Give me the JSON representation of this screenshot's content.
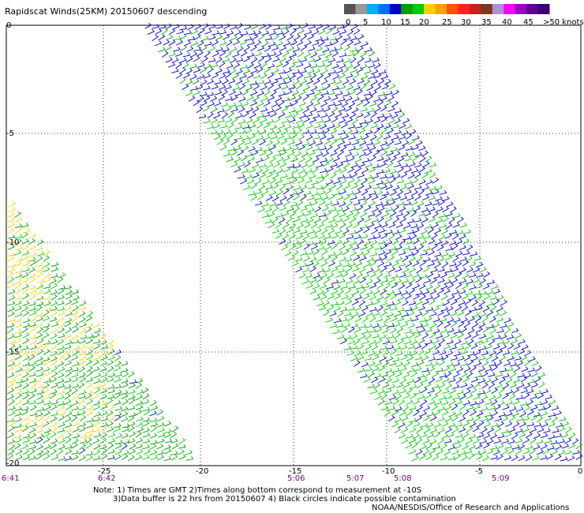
{
  "title": "Rapidscat Winds(25KM) 20150607 descending",
  "legend": {
    "labels": [
      "0",
      "5",
      "10",
      "15",
      "20",
      "25",
      "30",
      "35",
      "40",
      "45",
      ">50 knots"
    ],
    "colors": [
      "#555555",
      "#999999",
      "#00b0ff",
      "#0070ff",
      "#0000cc",
      "#00a000",
      "#00cc00",
      "#ffd000",
      "#ffa000",
      "#ff5000",
      "#ff2020",
      "#cc2020",
      "#7a3a1a",
      "#b090d0",
      "#ff00ff",
      "#a000c0",
      "#600090",
      "#3a0070"
    ]
  },
  "axes": {
    "y_ticks": [
      "0",
      "-5",
      "-10",
      "-15",
      "-20"
    ],
    "x_ticks": [
      "-25",
      "-20",
      "-15",
      "-10",
      "-5",
      "0"
    ],
    "time_labels": [
      "6:41",
      "6:42",
      "5:06",
      "5:07",
      "5:08",
      "5:09"
    ]
  },
  "notes": {
    "line1": "Note: 1) Times are GMT 2)Times along bottom correspond to measurement at -10S",
    "line2": "3)Data buffer is 22 hrs from 20150607 4) Black circles indicate possible contamination"
  },
  "credit": "NOAA/NESDIS/Office of Research and Applications"
}
